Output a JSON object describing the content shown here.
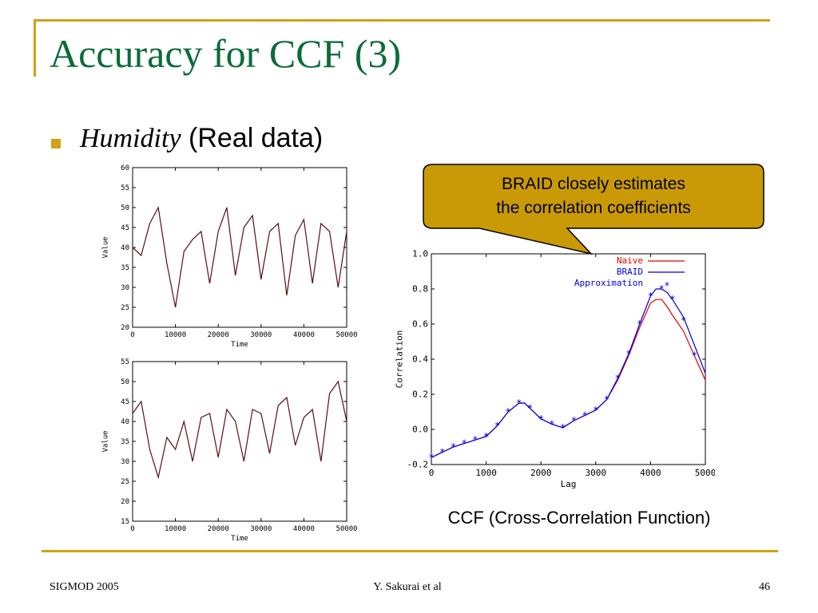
{
  "slide": {
    "title": "Accuracy for CCF (3)",
    "bullet_em": "Humidity",
    "bullet_rest": " (Real data)",
    "callout_line1": "BRAID closely estimates",
    "callout_line2": "the correlation coefficients",
    "caption": "CCF (Cross-Correlation Function)",
    "footer_left": "SIGMOD 2005",
    "footer_center": "Y. Sakurai et al",
    "footer_right": "46",
    "accent_color": "#d4a017",
    "title_color": "#0b6b3a"
  },
  "chart_data": [
    {
      "type": "line",
      "title": "",
      "xlabel": "Time",
      "ylabel": "Value",
      "xlim": [
        0,
        50000
      ],
      "ylim": [
        20,
        60
      ],
      "x_ticks": [
        "0",
        "10000",
        "20000",
        "30000",
        "40000",
        "50000"
      ],
      "y_ticks": [
        "20",
        "25",
        "30",
        "35",
        "40",
        "45",
        "50",
        "55",
        "60"
      ],
      "series": [
        {
          "color": "#5a0f12",
          "x": [
            0,
            2000,
            4000,
            6000,
            8000,
            10000,
            12000,
            14000,
            16000,
            18000,
            20000,
            22000,
            24000,
            26000,
            28000,
            30000,
            32000,
            34000,
            36000,
            38000,
            40000,
            42000,
            44000,
            46000,
            48000,
            50000
          ],
          "y": [
            40,
            38,
            46,
            50,
            36,
            25,
            39,
            42,
            44,
            31,
            44,
            50,
            33,
            45,
            48,
            32,
            44,
            46,
            28,
            43,
            47,
            31,
            46,
            44,
            30,
            44
          ]
        }
      ]
    },
    {
      "type": "line",
      "title": "",
      "xlabel": "Time",
      "ylabel": "Value",
      "xlim": [
        0,
        50000
      ],
      "ylim": [
        15,
        55
      ],
      "x_ticks": [
        "0",
        "10000",
        "20000",
        "30000",
        "40000",
        "50000"
      ],
      "y_ticks": [
        "15",
        "20",
        "25",
        "30",
        "35",
        "40",
        "45",
        "50",
        "55"
      ],
      "series": [
        {
          "color": "#5a0f12",
          "x": [
            0,
            2000,
            4000,
            6000,
            8000,
            10000,
            12000,
            14000,
            16000,
            18000,
            20000,
            22000,
            24000,
            26000,
            28000,
            30000,
            32000,
            34000,
            36000,
            38000,
            40000,
            42000,
            44000,
            46000,
            48000,
            50000
          ],
          "y": [
            42,
            45,
            33,
            26,
            36,
            33,
            40,
            30,
            41,
            42,
            31,
            43,
            40,
            30,
            43,
            42,
            32,
            44,
            46,
            34,
            41,
            43,
            30,
            47,
            50,
            40
          ]
        }
      ]
    },
    {
      "type": "line",
      "title": "",
      "xlabel": "Lag",
      "ylabel": "Correlation",
      "xlim": [
        0,
        5000
      ],
      "ylim": [
        -0.2,
        1.0
      ],
      "x_ticks": [
        "0",
        "1000",
        "2000",
        "3000",
        "4000",
        "5000"
      ],
      "y_ticks": [
        "-0.2",
        "0.0",
        "0.2",
        "0.4",
        "0.6",
        "0.8",
        "1.0"
      ],
      "legend_placement": "top-right",
      "series": [
        {
          "name": "Naive",
          "color": "#e00000",
          "x": [
            0,
            200,
            400,
            600,
            800,
            1000,
            1200,
            1400,
            1600,
            1700,
            1800,
            2000,
            2200,
            2400,
            2600,
            2800,
            3000,
            3200,
            3400,
            3600,
            3800,
            4000,
            4100,
            4200,
            4300,
            4400,
            4600,
            4800,
            5000
          ],
          "y": [
            -0.16,
            -0.13,
            -0.1,
            -0.08,
            -0.06,
            -0.04,
            0.02,
            0.1,
            0.15,
            0.15,
            0.12,
            0.06,
            0.03,
            0.01,
            0.05,
            0.08,
            0.11,
            0.17,
            0.28,
            0.42,
            0.58,
            0.72,
            0.74,
            0.74,
            0.7,
            0.65,
            0.56,
            0.42,
            0.28
          ]
        },
        {
          "name": "BRAID",
          "color": "#0000e0",
          "x": [
            0,
            200,
            400,
            600,
            800,
            1000,
            1200,
            1400,
            1600,
            1700,
            1800,
            2000,
            2200,
            2400,
            2600,
            2800,
            3000,
            3200,
            3400,
            3600,
            3800,
            4000,
            4100,
            4200,
            4300,
            4400,
            4600,
            4800,
            5000
          ],
          "y": [
            -0.16,
            -0.13,
            -0.1,
            -0.08,
            -0.06,
            -0.04,
            0.02,
            0.1,
            0.15,
            0.15,
            0.12,
            0.06,
            0.03,
            0.01,
            0.05,
            0.08,
            0.11,
            0.17,
            0.29,
            0.43,
            0.6,
            0.76,
            0.8,
            0.8,
            0.78,
            0.74,
            0.64,
            0.48,
            0.32
          ]
        },
        {
          "name": "Approximation",
          "color": "#0000e0",
          "x": [
            0,
            200,
            400,
            600,
            800,
            1000,
            1200,
            1400,
            1600,
            1800,
            2000,
            2200,
            2400,
            2600,
            2800,
            3000,
            3200,
            3400,
            3600,
            3800,
            4000,
            4200,
            4400,
            4600,
            4800
          ],
          "y": [
            -0.16,
            -0.13,
            -0.1,
            -0.08,
            -0.06,
            -0.04,
            0.02,
            0.1,
            0.15,
            0.12,
            0.06,
            0.03,
            0.01,
            0.05,
            0.08,
            0.11,
            0.17,
            0.29,
            0.43,
            0.6,
            0.76,
            0.8,
            0.74,
            0.62,
            0.42
          ]
        }
      ]
    }
  ]
}
